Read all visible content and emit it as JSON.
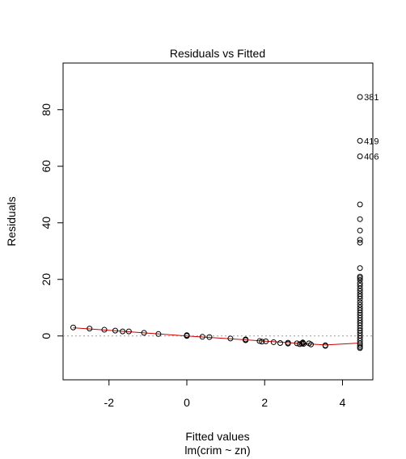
{
  "chart_data": {
    "type": "scatter",
    "title": "Residuals vs Fitted",
    "xlabel": "Fitted values",
    "subtitle": "lm(crim ~ zn)",
    "ylabel": "Residuals",
    "xlim": [
      -3.18,
      4.78
    ],
    "ylim": [
      -15.5,
      96.5
    ],
    "x_ticks": [
      -2,
      0,
      2,
      4
    ],
    "y_ticks": [
      0,
      20,
      40,
      60,
      80
    ],
    "colors": {
      "points": "#000000",
      "smooth": "#cc0000",
      "zero_line": "#999999",
      "axes": "#000000"
    },
    "points": {
      "x": [
        -2.92,
        -2.5,
        -2.12,
        -1.84,
        -1.65,
        -1.49,
        -1.1,
        -0.73,
        0.0,
        0.0,
        0.0,
        0.4,
        0.58,
        1.12,
        1.51,
        1.51,
        1.51,
        1.87,
        1.93,
        2.03,
        2.23,
        2.4,
        2.6,
        2.6,
        2.83,
        2.9,
        2.95,
        2.98,
        2.98,
        3.0,
        3.14,
        3.19,
        3.56,
        3.56
      ],
      "y": [
        3.0,
        2.6,
        2.2,
        1.9,
        1.6,
        1.6,
        1.1,
        0.7,
        0.3,
        0.0,
        0.1,
        -0.3,
        -0.4,
        -0.9,
        -1.2,
        -1.5,
        -1.4,
        -1.8,
        -2.0,
        -1.9,
        -2.2,
        -2.5,
        -2.4,
        -2.7,
        -2.6,
        -2.9,
        -2.7,
        -2.5,
        -2.3,
        -2.8,
        -2.6,
        -3.0,
        -3.3,
        -3.5
      ]
    },
    "dense_column": {
      "x": 4.45,
      "y": [
        84.5,
        69.0,
        63.5,
        46.5,
        41.3,
        37.3,
        34.0,
        33.0,
        24.0,
        21.0,
        20.5,
        19.8,
        18.6,
        17.8,
        16.8,
        15.9,
        14.9,
        14.0,
        13.1,
        12.0,
        11.0,
        10.0,
        9.1,
        8.2,
        7.3,
        6.4,
        5.5,
        4.6,
        3.7,
        2.8,
        1.9,
        1.0,
        0.1,
        -0.8,
        -1.7,
        -2.6,
        -3.3,
        -3.9,
        -4.3
      ]
    },
    "labels": [
      {
        "text": "381",
        "x": 4.45,
        "y": 84.5
      },
      {
        "text": "419",
        "x": 4.45,
        "y": 69.0
      },
      {
        "text": "406",
        "x": 4.45,
        "y": 63.5
      }
    ],
    "smooth": {
      "x": [
        -2.92,
        -2.0,
        -1.0,
        0.0,
        1.0,
        2.0,
        3.0,
        3.56,
        4.45
      ],
      "y": [
        2.9,
        2.0,
        1.0,
        0.0,
        -0.9,
        -1.8,
        -2.7,
        -3.2,
        -2.5
      ]
    }
  }
}
